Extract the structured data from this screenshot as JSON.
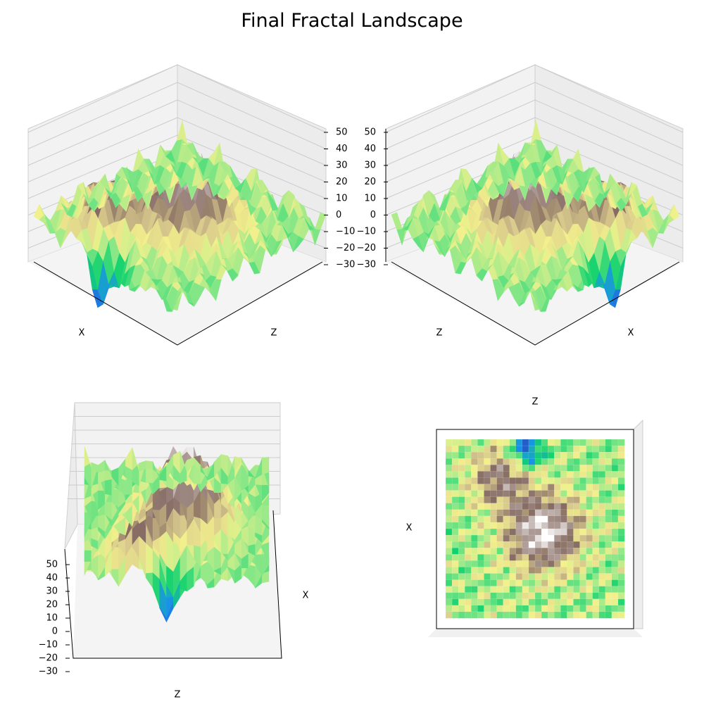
{
  "title": "Final Fractal Landscape",
  "chart_data": [
    {
      "type": "surface",
      "view": "elev 30, azim 45 (front-left)",
      "axis_labels": {
        "x": "X",
        "y": "Z"
      },
      "zlim": [
        -30,
        50
      ],
      "zticks": [
        "50",
        "40",
        "30",
        "20",
        "10",
        "0",
        "−10",
        "−20",
        "−30"
      ],
      "colormap": "terrain",
      "grid": true
    },
    {
      "type": "surface",
      "view": "elev 30, azim 135 (front-right)",
      "axis_labels": {
        "x": "X",
        "y": "Z"
      },
      "zlim": [
        -30,
        50
      ],
      "zticks": [
        "50",
        "40",
        "30",
        "20",
        "10",
        "0",
        "−10",
        "−20",
        "−30"
      ],
      "colormap": "terrain",
      "grid": true
    },
    {
      "type": "surface",
      "view": "elev 30, azim 0 (side)",
      "axis_labels": {
        "x": "X",
        "y": "Z"
      },
      "zlim": [
        -30,
        50
      ],
      "zticks": [
        "50",
        "40",
        "30",
        "20",
        "10",
        "0",
        "−10",
        "−20",
        "−30"
      ],
      "colormap": "terrain",
      "grid": true
    },
    {
      "type": "heatmap",
      "view": "top-down (elev 90)",
      "axis_labels": {
        "x": "X",
        "y": "Z"
      },
      "zlim": [
        -30,
        50
      ],
      "colormap": "terrain",
      "grid": false
    }
  ],
  "colors": {
    "deep": "#2a2fa0",
    "water": "#1a8ef0",
    "lowland": "#12d26e",
    "grass": "#8ee888",
    "sand": "#f3f18c",
    "tan": "#d8c98c",
    "brown": "#856b62",
    "rock": "#b5a4a0",
    "snow": "#ffffff"
  }
}
